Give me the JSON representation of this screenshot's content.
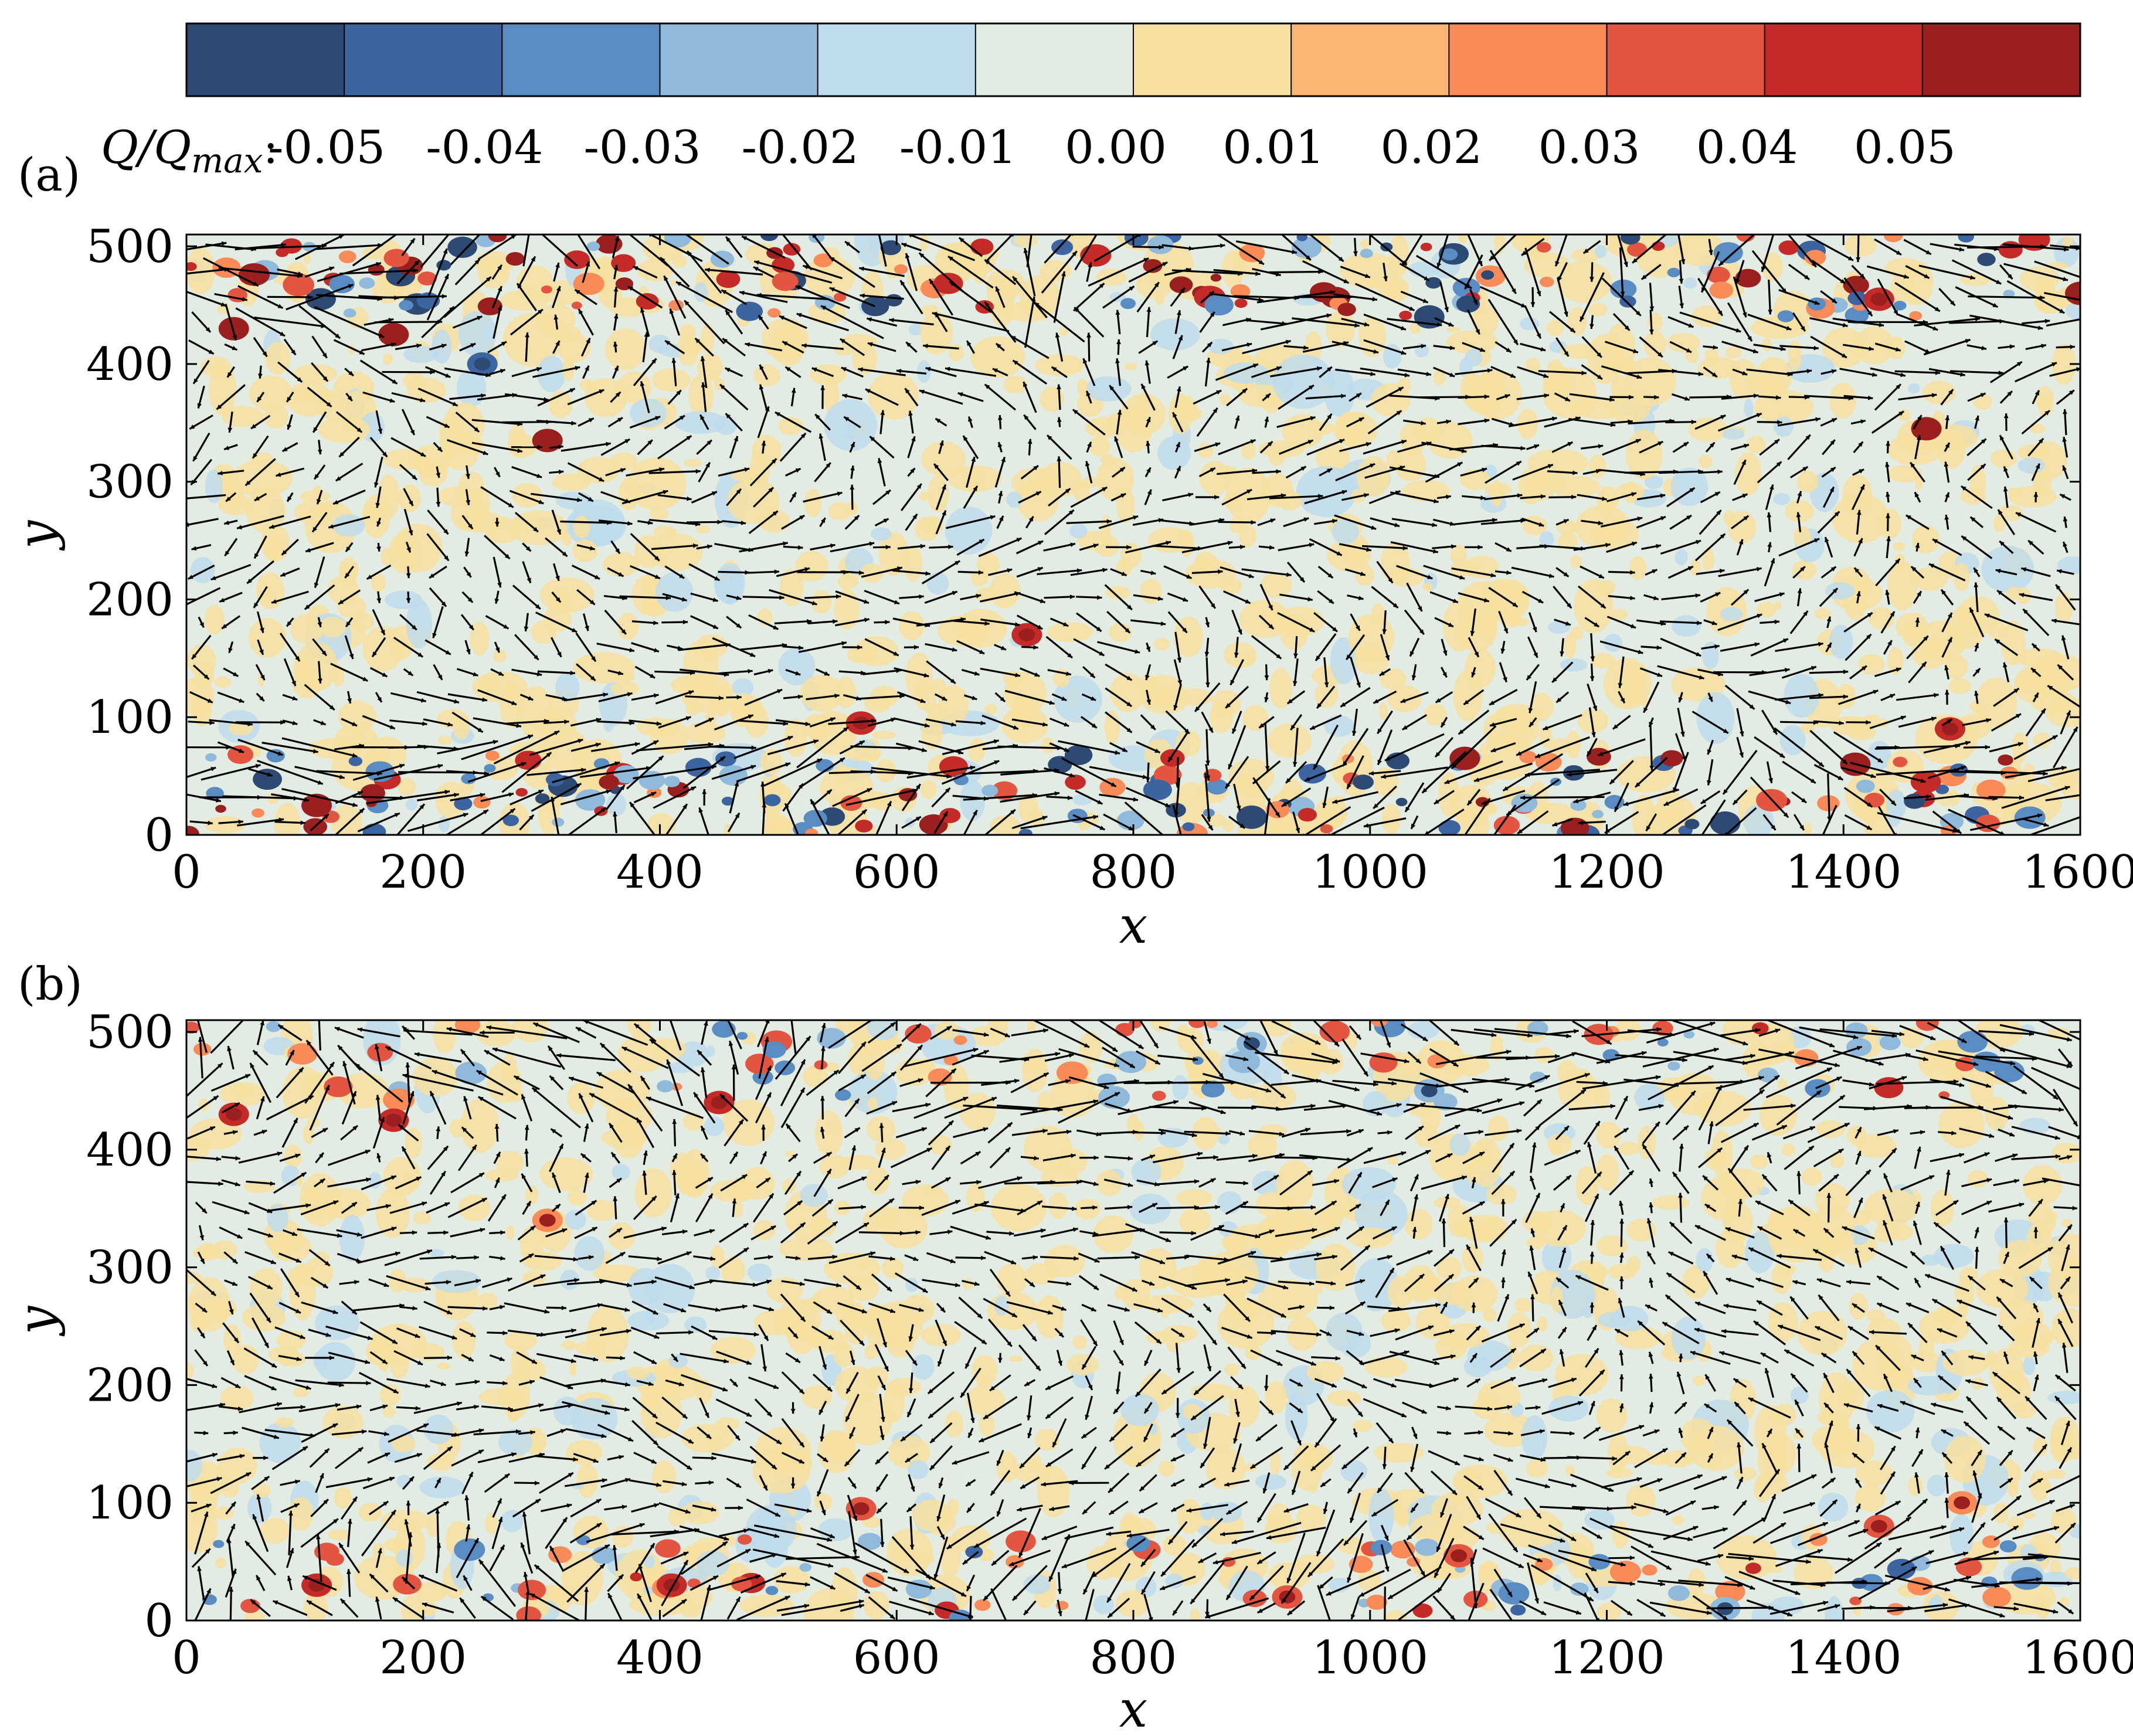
{
  "colorbar": {
    "title_main": "Q/Q",
    "title_sub": "max",
    "title_suffix": ":",
    "tick_labels": [
      "-0.05",
      "-0.04",
      "-0.03",
      "-0.02",
      "-0.01",
      "0.00",
      "0.01",
      "0.02",
      "0.03",
      "0.04",
      "0.05"
    ],
    "bin_colors": [
      "#2c4a73",
      "#3b64a0",
      "#5a8cc4",
      "#8fbadb",
      "#bedcec",
      "#e3ece2",
      "#f7e1a0",
      "#fdb574",
      "#f98b58",
      "#e35540",
      "#c42a27",
      "#9a2020"
    ]
  },
  "chart_data": [
    {
      "type": "heatmap",
      "panel_label": "(a)",
      "description_fields": "contour of Q/Qmax with overlaid velocity vectors",
      "xlabel": "x",
      "ylabel": "y",
      "xlim": [
        0,
        1600
      ],
      "ylim": [
        0,
        510
      ],
      "xticks": [
        0,
        200,
        400,
        600,
        800,
        1000,
        1200,
        1400,
        1600
      ],
      "yticks": [
        0,
        100,
        200,
        300,
        400,
        500
      ],
      "xtick_labels": [
        "0",
        "200",
        "400",
        "600",
        "800",
        "1000",
        "1200",
        "1400",
        "1600"
      ],
      "ytick_labels": [
        "0",
        "100",
        "200",
        "300",
        "400",
        "500"
      ],
      "grid": false,
      "background_value": 0.0,
      "strong_structures": [
        {
          "x": 40,
          "y": 430,
          "q": 0.05
        },
        {
          "x": 175,
          "y": 425,
          "q": 0.05
        },
        {
          "x": 305,
          "y": 335,
          "q": 0.05
        },
        {
          "x": 570,
          "y": 95,
          "q": 0.04
        },
        {
          "x": 710,
          "y": 170,
          "q": 0.04
        },
        {
          "x": 110,
          "y": 25,
          "q": 0.05
        },
        {
          "x": 1080,
          "y": 65,
          "q": 0.05
        },
        {
          "x": 1470,
          "y": 345,
          "q": 0.05
        },
        {
          "x": 1430,
          "y": 455,
          "q": 0.04
        },
        {
          "x": 1600,
          "y": 460,
          "q": 0.05
        },
        {
          "x": 1410,
          "y": 60,
          "q": 0.05
        },
        {
          "x": 1490,
          "y": 90,
          "q": 0.04
        },
        {
          "x": 250,
          "y": 400,
          "q": -0.04
        },
        {
          "x": 1050,
          "y": 440,
          "q": -0.05
        },
        {
          "x": 900,
          "y": 15,
          "q": -0.05
        },
        {
          "x": 1300,
          "y": 10,
          "q": -0.05
        }
      ]
    },
    {
      "type": "heatmap",
      "panel_label": "(b)",
      "xlabel": "x",
      "ylabel": "y",
      "xlim": [
        0,
        1600
      ],
      "ylim": [
        0,
        510
      ],
      "xticks": [
        0,
        200,
        400,
        600,
        800,
        1000,
        1200,
        1400,
        1600
      ],
      "yticks": [
        0,
        100,
        200,
        300,
        400,
        500
      ],
      "xtick_labels": [
        "0",
        "200",
        "400",
        "600",
        "800",
        "1000",
        "1200",
        "1400",
        "1600"
      ],
      "ytick_labels": [
        "0",
        "100",
        "200",
        "300",
        "400",
        "500"
      ],
      "grid": false,
      "background_value": 0.0,
      "strong_structures": [
        {
          "x": 40,
          "y": 430,
          "q": 0.04
        },
        {
          "x": 175,
          "y": 425,
          "q": 0.04
        },
        {
          "x": 450,
          "y": 440,
          "q": 0.04
        },
        {
          "x": 110,
          "y": 30,
          "q": 0.04
        },
        {
          "x": 410,
          "y": 30,
          "q": 0.04
        },
        {
          "x": 570,
          "y": 95,
          "q": 0.03
        },
        {
          "x": 305,
          "y": 340,
          "q": 0.02
        },
        {
          "x": 1075,
          "y": 55,
          "q": 0.03
        },
        {
          "x": 1430,
          "y": 80,
          "q": 0.03
        },
        {
          "x": 1500,
          "y": 100,
          "q": 0.02
        },
        {
          "x": 930,
          "y": 20,
          "q": 0.03
        },
        {
          "x": 900,
          "y": 490,
          "q": -0.03
        },
        {
          "x": 1300,
          "y": 10,
          "q": -0.03
        },
        {
          "x": 1050,
          "y": 450,
          "q": -0.02
        }
      ]
    }
  ]
}
